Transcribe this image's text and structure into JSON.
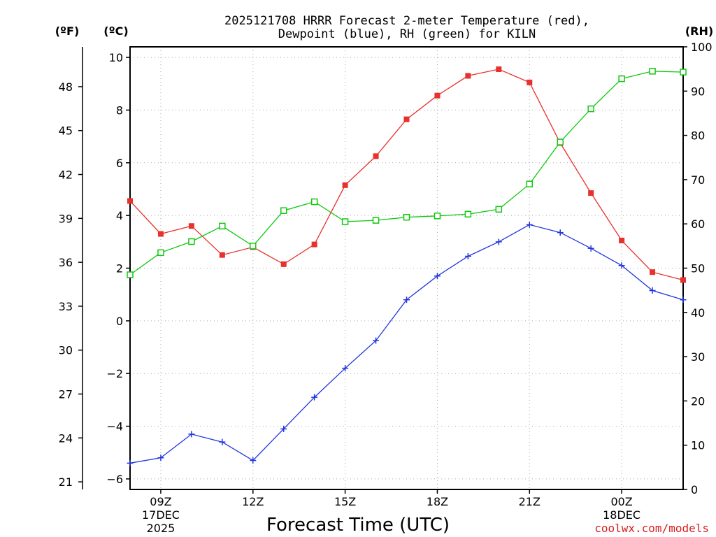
{
  "chart_data": {
    "type": "line",
    "title_line1": "2025121708 HRRR Forecast 2-meter Temperature (red),",
    "title_line2": "Dewpoint (blue), RH (green) for KILN",
    "xlabel": "Forecast Time (UTC)",
    "credit": "coolwx.com/models",
    "unit_f": "(ºF)",
    "unit_c": "(ºC)",
    "unit_rh": "(RH)",
    "x_hours": [
      8,
      9,
      10,
      11,
      12,
      13,
      14,
      15,
      16,
      17,
      18,
      19,
      20,
      21,
      22,
      23,
      24,
      25,
      26
    ],
    "x_range": [
      8,
      26
    ],
    "x_ticks": [
      {
        "hour": 9,
        "l1": "09Z",
        "l2": "17DEC",
        "l3": "2025"
      },
      {
        "hour": 12,
        "l1": "12Z",
        "l2": "",
        "l3": ""
      },
      {
        "hour": 15,
        "l1": "15Z",
        "l2": "",
        "l3": ""
      },
      {
        "hour": 18,
        "l1": "18Z",
        "l2": "",
        "l3": ""
      },
      {
        "hour": 21,
        "l1": "21Z",
        "l2": "",
        "l3": ""
      },
      {
        "hour": 24,
        "l1": "00Z",
        "l2": "18DEC",
        "l3": ""
      }
    ],
    "ylim_c": [
      -6.4,
      10.4
    ],
    "yticks_c": [
      {
        "v": -6,
        "label": "−6"
      },
      {
        "v": -4,
        "label": "−4"
      },
      {
        "v": -2,
        "label": "−2"
      },
      {
        "v": 0,
        "label": "0"
      },
      {
        "v": 2,
        "label": "2"
      },
      {
        "v": 4,
        "label": "4"
      },
      {
        "v": 6,
        "label": "6"
      },
      {
        "v": 8,
        "label": "8"
      },
      {
        "v": 10,
        "label": "10"
      }
    ],
    "yticks_f": [
      "21",
      "24",
      "27",
      "30",
      "33",
      "36",
      "39",
      "42",
      "45",
      "48"
    ],
    "ylim_rh": [
      0,
      100
    ],
    "yticks_rh": [
      "0",
      "10",
      "20",
      "30",
      "40",
      "50",
      "60",
      "70",
      "80",
      "90",
      "100"
    ],
    "series": [
      {
        "name": "Temperature",
        "color": "#e8302c",
        "marker": "filled-square",
        "values": [
          4.55,
          3.3,
          3.6,
          2.5,
          2.8,
          2.15,
          2.9,
          5.15,
          6.25,
          7.65,
          8.55,
          9.3,
          9.55,
          9.05,
          6.75,
          4.85,
          3.05,
          1.85,
          1.55
        ]
      },
      {
        "name": "Dewpoint",
        "color": "#2035e0",
        "marker": "plus",
        "values": [
          -5.4,
          -5.2,
          -4.3,
          -4.6,
          -5.3,
          -4.1,
          -2.9,
          -1.8,
          -0.75,
          0.8,
          1.7,
          2.45,
          3.0,
          3.65,
          3.35,
          2.75,
          2.1,
          1.15,
          0.8
        ]
      },
      {
        "name": "RH",
        "color": "#12c812",
        "marker": "open-square",
        "values": [
          48.5,
          53.5,
          56,
          59.5,
          55,
          63,
          65,
          60.5,
          60.8,
          61.5,
          61.8,
          62.2,
          63.3,
          69,
          78.5,
          86,
          92.8,
          94.5,
          94.3
        ]
      }
    ]
  }
}
